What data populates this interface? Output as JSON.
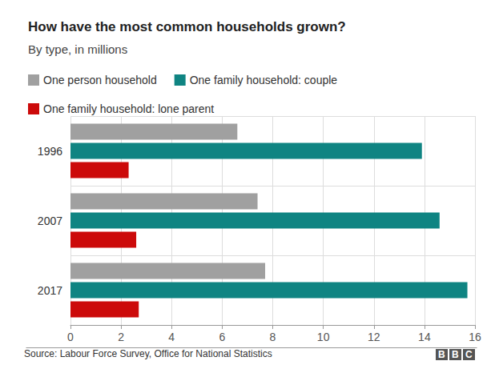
{
  "chart_data": {
    "type": "bar",
    "orientation": "horizontal",
    "title": "How have the most common households grown?",
    "subtitle": "By type, in millions",
    "categories": [
      "1996",
      "2007",
      "2017"
    ],
    "series": [
      {
        "name": "One person household",
        "color": "#a0a0a0",
        "values": [
          6.6,
          7.4,
          7.7
        ]
      },
      {
        "name": "One family household: couple",
        "color": "#0f8482",
        "values": [
          13.9,
          14.6,
          15.7
        ]
      },
      {
        "name": "One family household: lone parent",
        "color": "#cc0a0a",
        "values": [
          2.3,
          2.6,
          2.7
        ]
      }
    ],
    "xlim": [
      0,
      16
    ],
    "xticks": [
      0,
      2,
      4,
      6,
      8,
      10,
      12,
      14,
      16
    ],
    "grid": true,
    "legend": "top-left",
    "source": "Source: Labour Force Survey, Office for National Statistics",
    "credit": "BBC"
  }
}
